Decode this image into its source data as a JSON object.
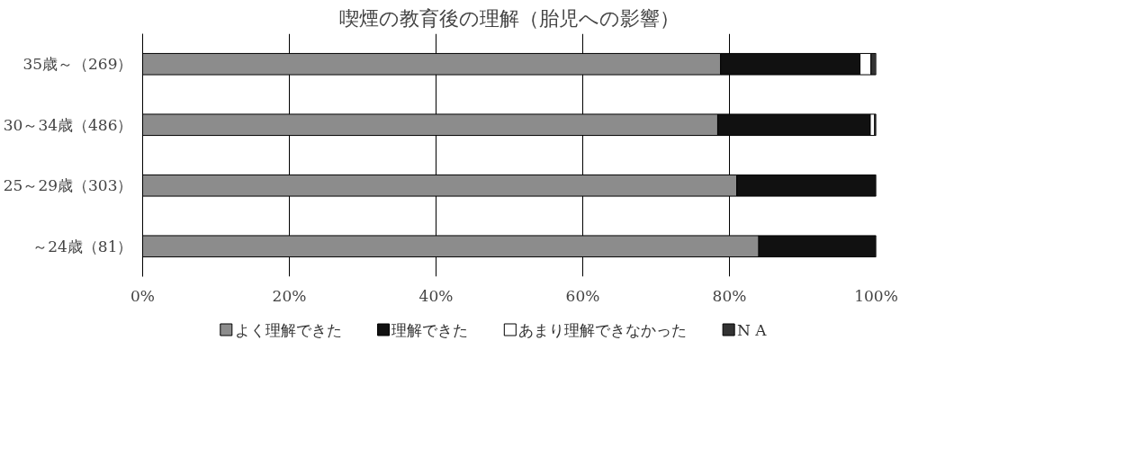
{
  "chart_data": {
    "type": "bar",
    "orientation": "horizontal",
    "stacked": true,
    "title": "喫煙の教育後の理解（胎児への影響）",
    "categories": [
      "35歳～（269）",
      "30～34歳（486）",
      "25～29歳（303）",
      "～24歳（81）"
    ],
    "series": [
      {
        "name": "よく理解できた",
        "color": "#8c8c8c",
        "values": [
          78.8,
          78.4,
          81.0,
          84.0
        ]
      },
      {
        "name": "理解できた",
        "color": "#111111",
        "values": [
          19.0,
          20.8,
          19.0,
          16.0
        ]
      },
      {
        "name": "あまり理解できなかった",
        "color": "#ffffff",
        "values": [
          1.5,
          0.6,
          0,
          0
        ]
      },
      {
        "name": "N A",
        "color": "#333333",
        "values": [
          0.7,
          0.2,
          0,
          0
        ]
      }
    ],
    "xlim": [
      0,
      100
    ],
    "xticks": [
      {
        "value": 0,
        "label": "0%"
      },
      {
        "value": 20,
        "label": "20%"
      },
      {
        "value": 40,
        "label": "40%"
      },
      {
        "value": 60,
        "label": "60%"
      },
      {
        "value": 80,
        "label": "80%"
      },
      {
        "value": 100,
        "label": "100%"
      }
    ],
    "grid": "x",
    "legend": "bottom"
  }
}
